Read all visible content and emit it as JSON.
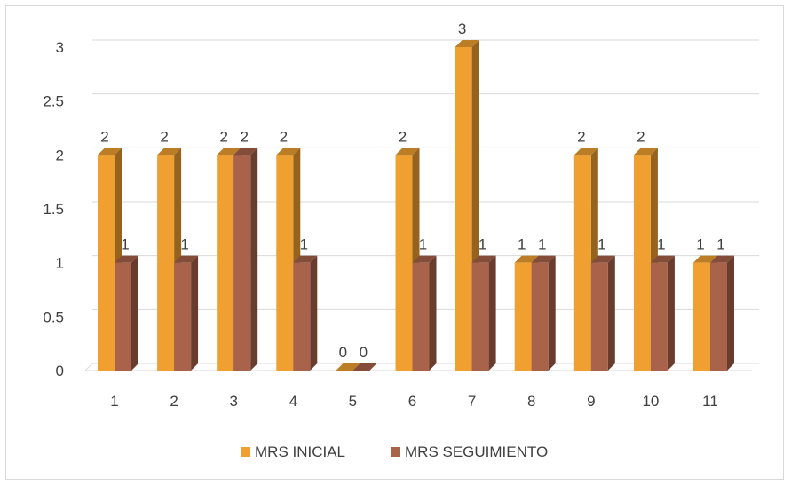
{
  "chart_data": {
    "type": "bar",
    "style": "3d-clustered-column",
    "categories": [
      "1",
      "2",
      "3",
      "4",
      "5",
      "6",
      "7",
      "8",
      "9",
      "10",
      "11"
    ],
    "series": [
      {
        "name": "MRS INICIAL",
        "color": "#F0A030",
        "values": [
          2,
          2,
          2,
          2,
          0,
          2,
          3,
          1,
          2,
          2,
          1
        ]
      },
      {
        "name": "MRS SEGUIMIENTO",
        "color": "#A9634A",
        "values": [
          1,
          1,
          2,
          1,
          0,
          1,
          1,
          1,
          1,
          1,
          1
        ]
      }
    ],
    "y_ticks": [
      "0",
      "0.5",
      "1",
      "1.5",
      "2",
      "2.5",
      "3"
    ],
    "ylim": [
      0,
      3
    ],
    "grid": true,
    "legend": "bottom",
    "data_labels": true
  }
}
